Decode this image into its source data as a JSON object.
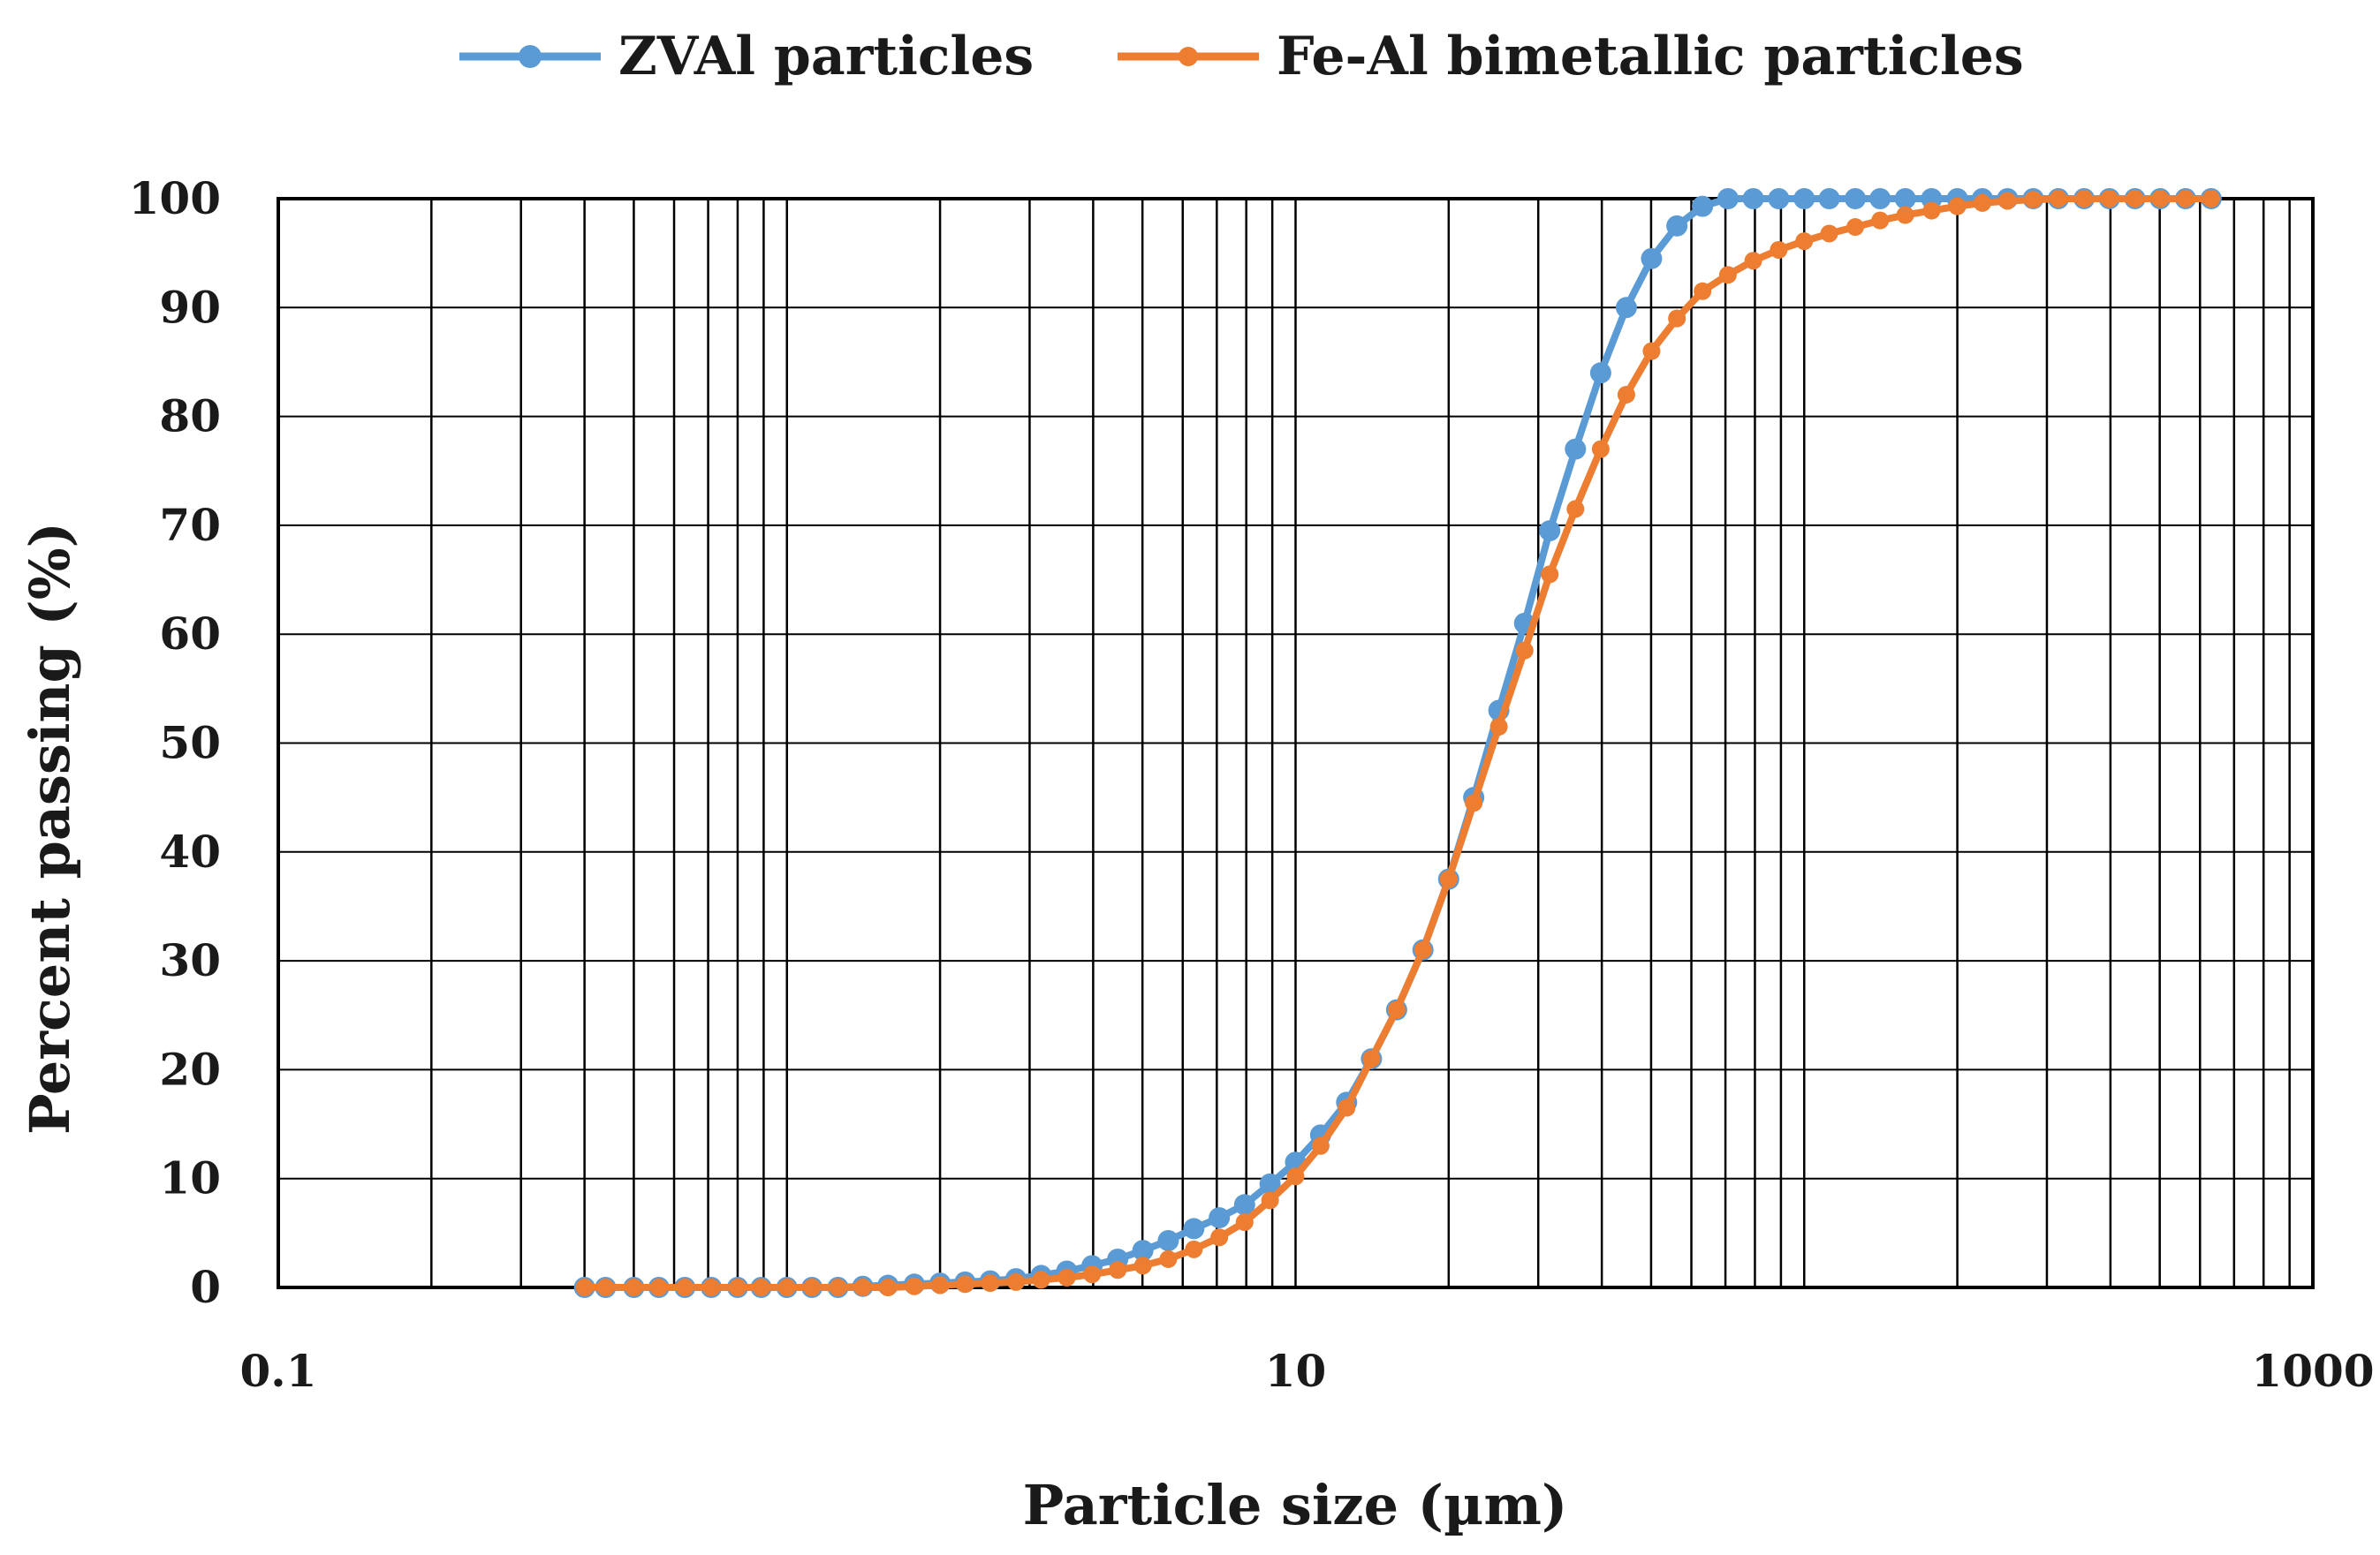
{
  "chart_data": {
    "type": "line",
    "title": "",
    "xlabel": "Particle size (µm)",
    "ylabel": "Percent passing (%)",
    "xscale": "log",
    "xlim": [
      0.1,
      1000
    ],
    "ylim": [
      0,
      100
    ],
    "x_ticks": [
      0.1,
      10,
      1000
    ],
    "x_tick_labels": [
      "0.1",
      "10",
      "1000"
    ],
    "y_ticks": [
      0,
      10,
      20,
      30,
      40,
      50,
      60,
      70,
      80,
      90,
      100
    ],
    "y_tick_labels": [
      "0",
      "10",
      "20",
      "30",
      "40",
      "50",
      "60",
      "70",
      "80",
      "90",
      "100"
    ],
    "grid": true,
    "legend_position": "top",
    "x": [
      0.4,
      0.44,
      0.5,
      0.56,
      0.63,
      0.71,
      0.8,
      0.89,
      1,
      1.12,
      1.26,
      1.41,
      1.58,
      1.78,
      2,
      2.24,
      2.51,
      2.82,
      3.16,
      3.55,
      3.98,
      4.47,
      5.01,
      5.62,
      6.31,
      7.08,
      7.94,
      8.91,
      10,
      11.2,
      12.6,
      14.1,
      15.8,
      17.8,
      20,
      22.4,
      25.1,
      28.2,
      31.6,
      35.5,
      39.8,
      44.7,
      50.1,
      56.2,
      63.1,
      70.8,
      79.4,
      89.1,
      100,
      112,
      126,
      141,
      158,
      178,
      200,
      224,
      251,
      282,
      316,
      355,
      398,
      447,
      501,
      562,
      631
    ],
    "series": [
      {
        "name": "ZVAl particles",
        "color": "#5b9bd5",
        "values": [
          0,
          0,
          0,
          0,
          0,
          0,
          0,
          0,
          0,
          0,
          0,
          0.1,
          0.2,
          0.3,
          0.4,
          0.5,
          0.6,
          0.8,
          1.1,
          1.5,
          2.0,
          2.6,
          3.4,
          4.3,
          5.4,
          6.4,
          7.6,
          9.5,
          11.5,
          14.0,
          17.0,
          21.0,
          25.5,
          31.0,
          37.5,
          45.0,
          53.0,
          61.0,
          69.5,
          77.0,
          84.0,
          90.0,
          94.5,
          97.5,
          99.3,
          100,
          100,
          100,
          100,
          100,
          100,
          100,
          100,
          100,
          100,
          100,
          100,
          100,
          100,
          100,
          100,
          100,
          100,
          100,
          100
        ]
      },
      {
        "name": "Fe-Al bimetallic particles",
        "color": "#ed7d31",
        "values": [
          0,
          0,
          0,
          0,
          0,
          0,
          0,
          0,
          0,
          0,
          0,
          0,
          0,
          0.1,
          0.2,
          0.3,
          0.4,
          0.5,
          0.7,
          0.9,
          1.2,
          1.6,
          2.0,
          2.6,
          3.5,
          4.6,
          6.0,
          8.0,
          10.2,
          13.0,
          16.5,
          21.0,
          25.5,
          31.0,
          37.5,
          44.5,
          51.5,
          58.5,
          65.5,
          71.5,
          77.0,
          82.0,
          86.0,
          89.0,
          91.5,
          93.0,
          94.3,
          95.3,
          96.1,
          96.8,
          97.4,
          98.0,
          98.5,
          98.9,
          99.3,
          99.6,
          99.8,
          99.9,
          100,
          100,
          100,
          100,
          100,
          100,
          100
        ]
      }
    ]
  }
}
